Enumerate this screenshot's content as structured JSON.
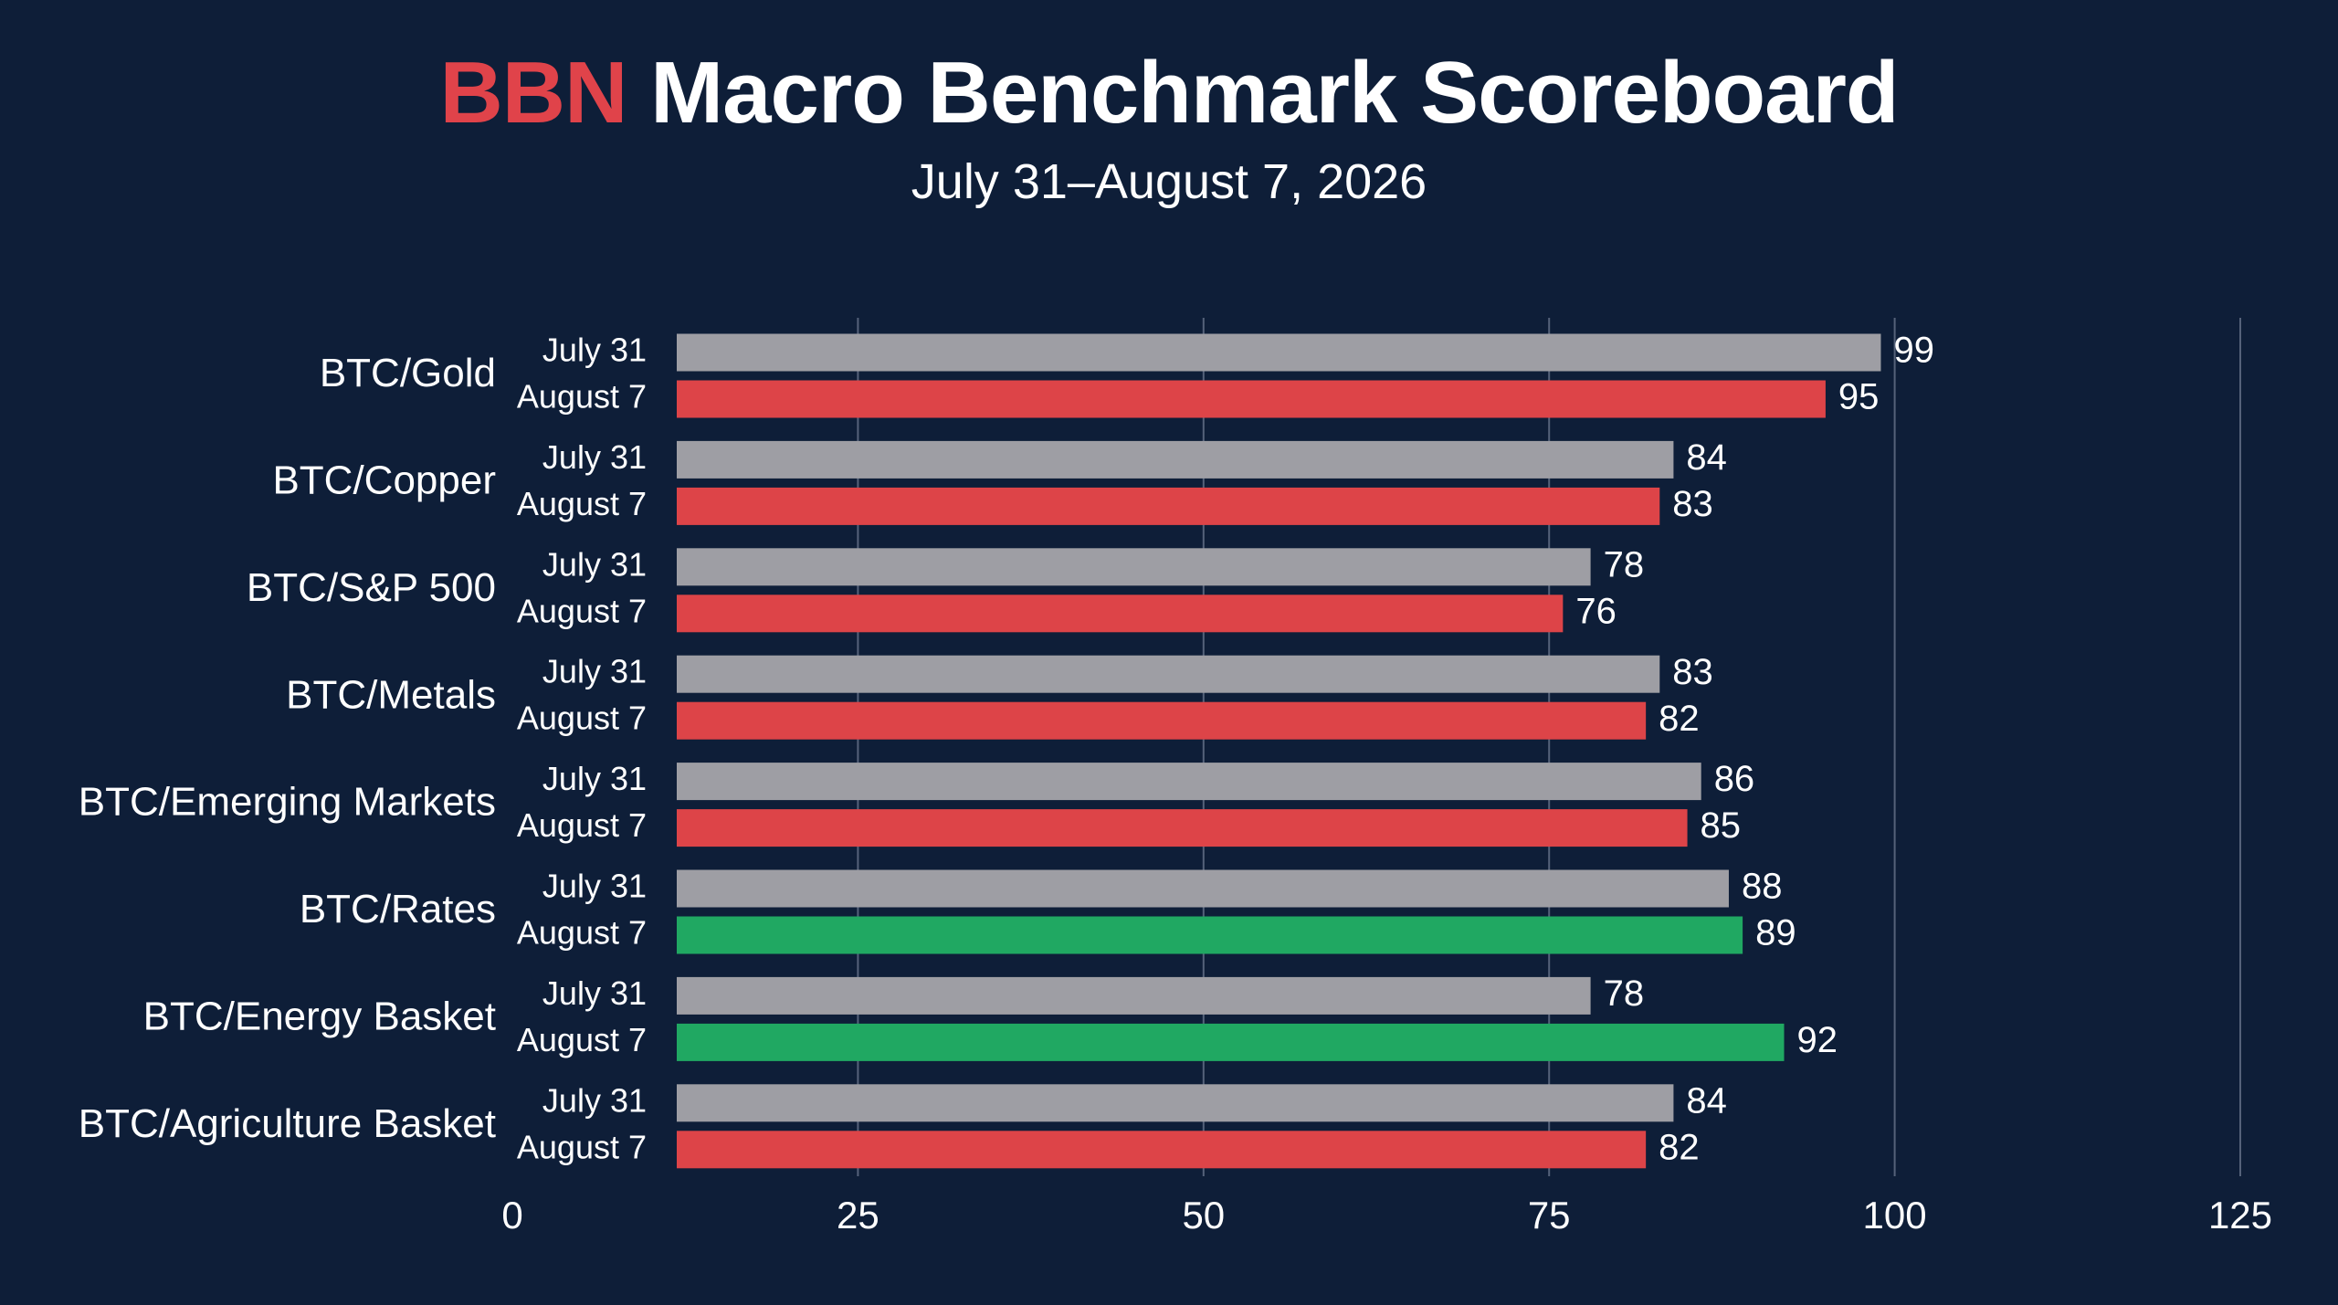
{
  "title": {
    "brand": "BBN",
    "rest": "Macro Benchmark Scoreboard"
  },
  "subtitle": "July 31–August 7, 2026",
  "colors": {
    "background": "#0e1e38",
    "baseline": "#9e9ea4",
    "decline": "#dd4448",
    "improve": "#20a862",
    "grid": "#55627a",
    "brand": "#e0434a"
  },
  "chart_data": {
    "type": "bar",
    "orientation": "horizontal",
    "categories": [
      "BTC/Gold",
      "BTC/Copper",
      "BTC/S&P 500",
      "BTC/Metals",
      "BTC/Emerging Markets",
      "BTC/Rates",
      "BTC/Energy Basket",
      "BTC/Agriculture Basket"
    ],
    "series": [
      {
        "name": "July 31",
        "values": [
          99,
          84,
          78,
          83,
          86,
          88,
          78,
          84
        ]
      },
      {
        "name": "August 7",
        "values": [
          95,
          83,
          76,
          82,
          85,
          89,
          92,
          82
        ]
      }
    ],
    "ticks": [
      0,
      25,
      50,
      75,
      100,
      125
    ],
    "xlim": [
      0,
      125
    ],
    "grid": true,
    "legend": "none"
  }
}
